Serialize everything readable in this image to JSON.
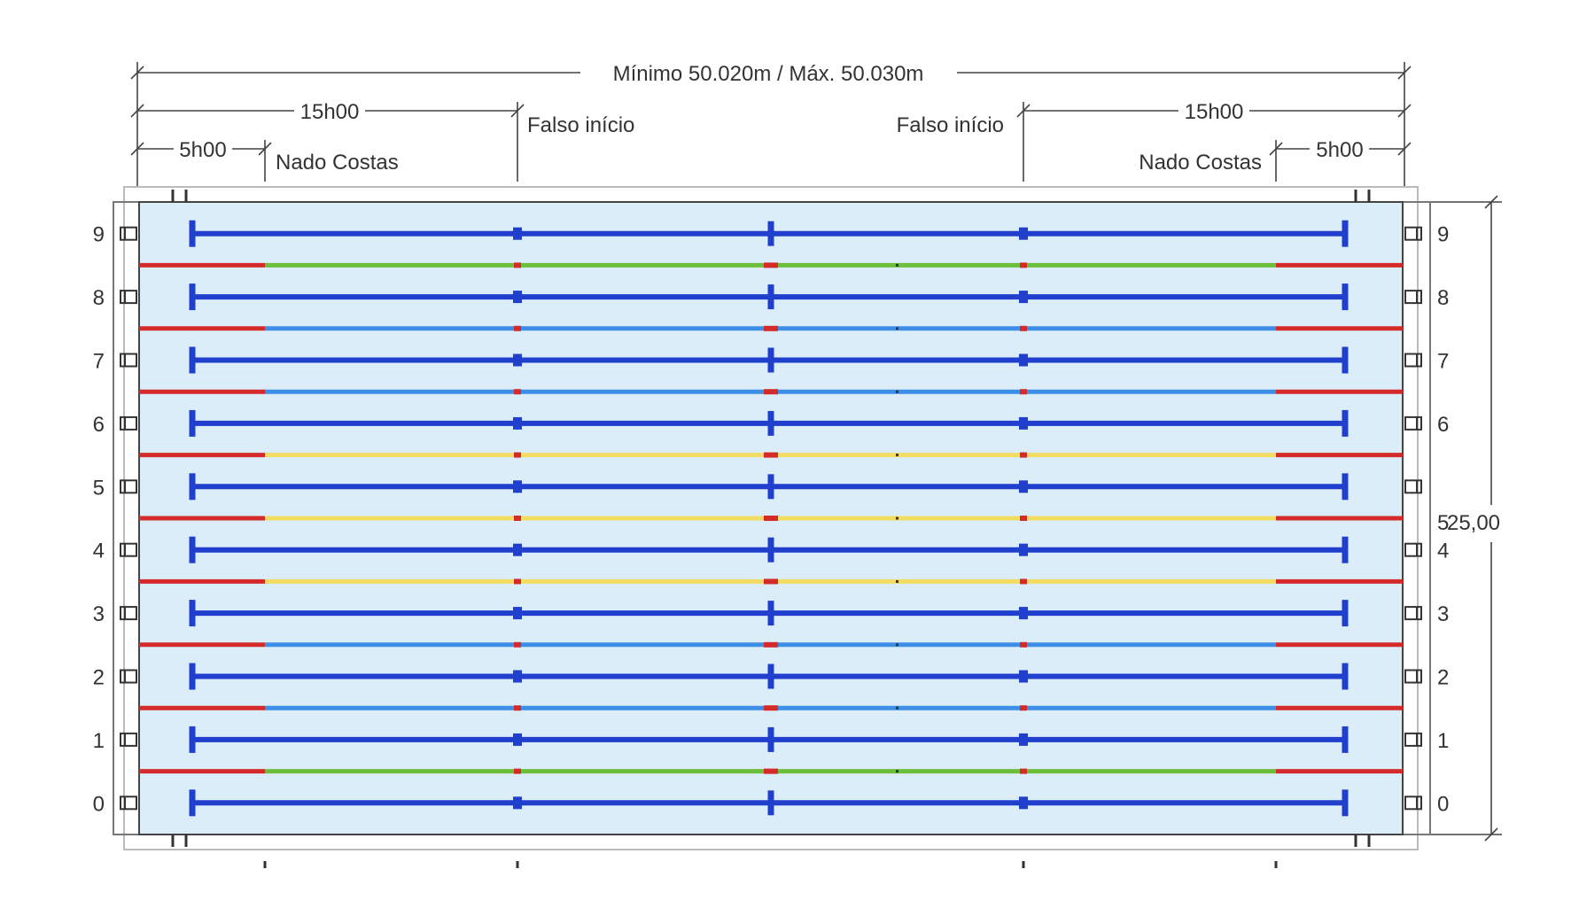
{
  "dimensions": {
    "total_length": "Mínimo 50.020m / Máx. 50.030m",
    "left_15m": "15h00",
    "right_15m": "15h00",
    "left_5m": "5h00",
    "right_5m": "5h00",
    "left_false_start": "Falso início",
    "right_false_start": "Falso início",
    "left_backstroke": "Nado Costas",
    "right_backstroke": "Nado Costas",
    "width": "25,00"
  },
  "lanes": {
    "left_numbers": [
      "9",
      "8",
      "7",
      "6",
      "5",
      "4",
      "3",
      "2",
      "1",
      "0"
    ],
    "right_numbers": [
      "9",
      "8",
      "7",
      "6",
      "",
      "4",
      "3",
      "2",
      "1",
      "0"
    ],
    "right_width_prefix": "5"
  },
  "lane_rope_colors": [
    "green",
    "blue",
    "blue",
    "yellow",
    "yellow",
    "yellow",
    "blue",
    "blue",
    "green"
  ],
  "colors": {
    "water": "#dcedfa",
    "lane_line": "#1f3fcc",
    "rope_end": "#d42a2a",
    "rope_green": "#6bbf3a",
    "rope_blue": "#3c8ee6",
    "rope_yellow": "#f2dc62",
    "outline": "#555555",
    "text": "#333333"
  }
}
